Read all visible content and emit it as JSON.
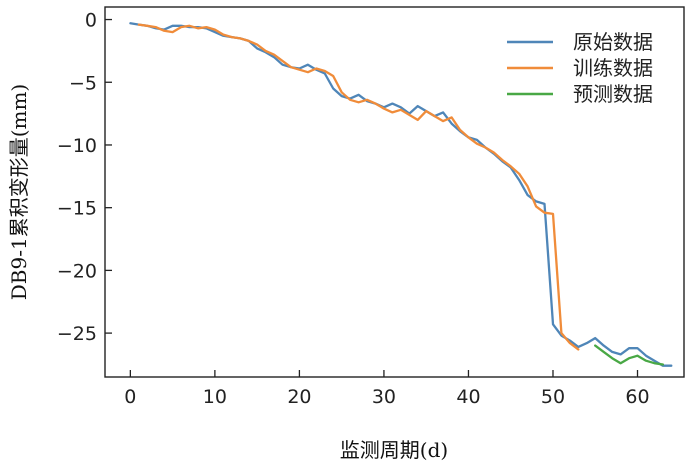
{
  "chart_data": {
    "type": "line",
    "xlabel": "监测周期(d)",
    "ylabel": "DB9-1累积变形量(mm)",
    "xlim": [
      -3,
      65.5
    ],
    "ylim": [
      -28.5,
      1
    ],
    "xticks": [
      0,
      10,
      20,
      30,
      40,
      50,
      60
    ],
    "yticks": [
      0,
      -5,
      -10,
      -15,
      -20,
      -25
    ],
    "xtick_labels": [
      "0",
      "10",
      "20",
      "30",
      "40",
      "50",
      "60"
    ],
    "ytick_labels": [
      "0",
      "−5",
      "−10",
      "−15",
      "−20",
      "−25"
    ],
    "grid": false,
    "legend_position": "top-right",
    "series": [
      {
        "name": "原始数据",
        "color": "#4f86b8",
        "x": [
          0,
          1,
          2,
          3,
          4,
          5,
          6,
          7,
          8,
          9,
          10,
          11,
          12,
          13,
          14,
          15,
          16,
          17,
          18,
          19,
          20,
          21,
          22,
          23,
          24,
          25,
          26,
          27,
          28,
          29,
          30,
          31,
          32,
          33,
          34,
          35,
          36,
          37,
          38,
          39,
          40,
          41,
          42,
          43,
          44,
          45,
          46,
          47,
          48,
          49,
          50,
          51,
          52,
          53,
          54,
          55,
          56,
          57,
          58,
          59,
          60,
          61,
          62,
          63,
          64
        ],
        "y": [
          -0.3,
          -0.4,
          -0.5,
          -0.7,
          -0.8,
          -0.5,
          -0.5,
          -0.6,
          -0.6,
          -0.7,
          -1.0,
          -1.3,
          -1.4,
          -1.5,
          -1.7,
          -2.3,
          -2.6,
          -3.0,
          -3.6,
          -3.8,
          -3.9,
          -3.6,
          -4.0,
          -4.3,
          -5.5,
          -6.1,
          -6.3,
          -6.0,
          -6.5,
          -6.7,
          -7.0,
          -6.7,
          -7.0,
          -7.5,
          -6.9,
          -7.3,
          -7.7,
          -7.4,
          -8.3,
          -8.9,
          -9.4,
          -9.6,
          -10.2,
          -10.7,
          -11.3,
          -11.8,
          -12.8,
          -14.0,
          -14.5,
          -14.7,
          -24.3,
          -25.2,
          -25.6,
          -26.1,
          -25.8,
          -25.4,
          -26.0,
          -26.5,
          -26.7,
          -26.2,
          -26.2,
          -26.8,
          -27.2,
          -27.6,
          -27.6
        ]
      },
      {
        "name": "训练数据",
        "color": "#f08c3a",
        "x": [
          1,
          2,
          3,
          4,
          5,
          6,
          7,
          8,
          9,
          10,
          11,
          12,
          13,
          14,
          15,
          16,
          17,
          18,
          19,
          20,
          21,
          22,
          23,
          24,
          25,
          26,
          27,
          28,
          29,
          30,
          31,
          32,
          33,
          34,
          35,
          36,
          37,
          38,
          39,
          40,
          41,
          42,
          43,
          44,
          45,
          46,
          47,
          48,
          49,
          50,
          51,
          52,
          53
        ],
        "y": [
          -0.4,
          -0.5,
          -0.6,
          -0.9,
          -1.0,
          -0.6,
          -0.5,
          -0.7,
          -0.6,
          -0.8,
          -1.2,
          -1.4,
          -1.5,
          -1.7,
          -2.0,
          -2.5,
          -2.8,
          -3.3,
          -3.8,
          -4.0,
          -4.2,
          -3.9,
          -4.1,
          -4.5,
          -5.8,
          -6.4,
          -6.6,
          -6.4,
          -6.7,
          -7.1,
          -7.4,
          -7.2,
          -7.6,
          -8.0,
          -7.3,
          -7.7,
          -8.1,
          -7.8,
          -8.8,
          -9.4,
          -9.9,
          -10.2,
          -10.6,
          -11.2,
          -11.7,
          -12.3,
          -13.3,
          -14.9,
          -15.4,
          -15.5,
          -25.0,
          -25.8,
          -26.3
        ]
      },
      {
        "name": "预测数据",
        "color": "#49a845",
        "x": [
          55,
          56,
          57,
          58,
          59,
          60,
          61,
          62,
          63
        ],
        "y": [
          -26.0,
          -26.5,
          -27.0,
          -27.4,
          -27.0,
          -26.8,
          -27.2,
          -27.4,
          -27.5
        ]
      }
    ]
  }
}
